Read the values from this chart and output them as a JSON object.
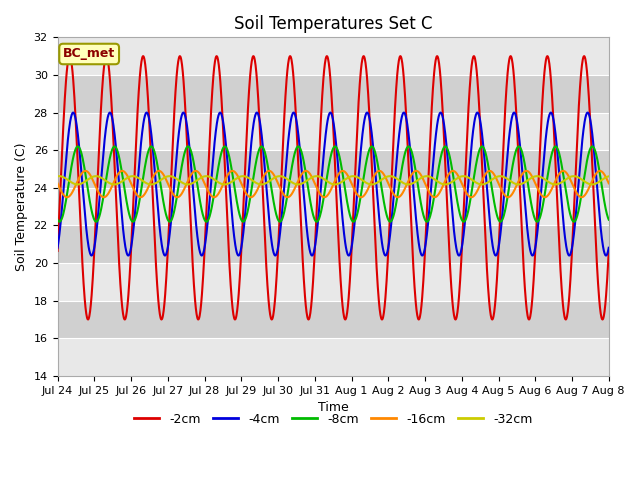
{
  "title": "Soil Temperatures Set C",
  "xlabel": "Time",
  "ylabel": "Soil Temperature (C)",
  "annotation": "BC_met",
  "ylim": [
    14,
    32
  ],
  "yticks": [
    14,
    16,
    18,
    20,
    22,
    24,
    26,
    28,
    30,
    32
  ],
  "x_labels": [
    "Jul 24",
    "Jul 25",
    "Jul 26",
    "Jul 27",
    "Jul 28",
    "Jul 29",
    "Jul 30",
    "Jul 31",
    "Aug 1",
    "Aug 2",
    "Aug 3",
    "Aug 4",
    "Aug 5",
    "Aug 6",
    "Aug 7",
    "Aug 8"
  ],
  "series": [
    {
      "label": "-2cm",
      "color": "#dd0000",
      "lw": 1.5,
      "amp": 7.0,
      "mean": 24.0,
      "phase": 0.5,
      "phase_drift": 0.0
    },
    {
      "label": "-4cm",
      "color": "#0000dd",
      "lw": 1.5,
      "amp": 3.8,
      "mean": 24.2,
      "phase": 1.1,
      "phase_drift": 0.0
    },
    {
      "label": "-8cm",
      "color": "#00bb00",
      "lw": 1.5,
      "amp": 2.0,
      "mean": 24.2,
      "phase": 1.9,
      "phase_drift": 0.0
    },
    {
      "label": "-16cm",
      "color": "#ff8800",
      "lw": 1.5,
      "amp": 0.7,
      "mean": 24.2,
      "phase": 3.2,
      "phase_drift": 0.0
    },
    {
      "label": "-32cm",
      "color": "#cccc00",
      "lw": 1.5,
      "amp": 0.22,
      "mean": 24.4,
      "phase": 5.0,
      "phase_drift": 0.0
    }
  ],
  "period": 1.0,
  "n_days": 15,
  "pts_per_day": 96,
  "background_color": "#d8d8d8",
  "band_color_light": "#e8e8e8",
  "band_color_dark": "#d0d0d0",
  "grid_color": "#f0f0f0",
  "title_fontsize": 12,
  "label_fontsize": 9,
  "tick_fontsize": 8
}
